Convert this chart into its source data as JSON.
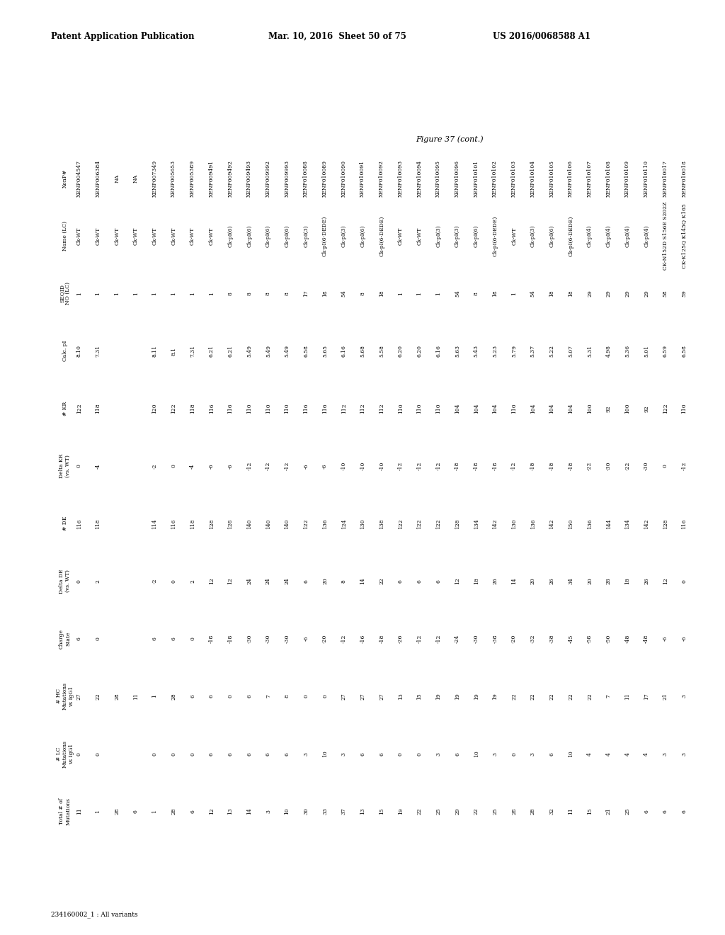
{
  "header_left": "Patent Application Publication",
  "header_middle": "Mar. 10, 2016  Sheet 50 of 75",
  "header_right": "US 2016/0068588 A1",
  "figure_label": "Figure 37 (cont.)",
  "footer_note": "234160002_1 : All variants",
  "col_headers": [
    "XenP#",
    "Name (LC)",
    "SEQID\nNO (LC)",
    "Calc. pI",
    "# KR",
    "Delta KR\n(vs. WT)",
    "# DE",
    "Delta DE\n(vs. WT)",
    "Charge\nState",
    "# HC\nMutations\nvs IgG1",
    "# LC\nMutations\nvs IgG1",
    "Total # of\nMutations"
  ],
  "rows": [
    [
      "XENP004547",
      "Ck-WT",
      "1",
      "8.10",
      "122",
      "0",
      "116",
      "0",
      "6",
      "27",
      "0",
      "11"
    ],
    [
      "XENP006384",
      "Ck-WT",
      "1",
      "7.31",
      "118",
      "-4",
      "118",
      "2",
      "0",
      "22",
      "0",
      "1"
    ],
    [
      "NA",
      "Ck-WT",
      "1",
      "",
      "",
      "",
      "",
      "",
      "",
      "28",
      "",
      "28"
    ],
    [
      "NA",
      "Ck-WT",
      "1",
      "",
      "",
      "",
      "",
      "",
      "",
      "11",
      "",
      "6"
    ],
    [
      "XENP007349",
      "Ck-WT",
      "1",
      "8.11",
      "120",
      "-2",
      "114",
      "-2",
      "6",
      "1",
      "0",
      "1"
    ],
    [
      "XENP005653",
      "Ck-WT",
      "1",
      "8.1",
      "122",
      "0",
      "116",
      "0",
      "6",
      "28",
      "0",
      "28"
    ],
    [
      "XENP005389",
      "Ck-WT",
      "1",
      "7.31",
      "118",
      "-4",
      "118",
      "2",
      "0",
      "6",
      "0",
      "6"
    ],
    [
      "XENP009491",
      "Ck-WT",
      "1",
      "6.21",
      "116",
      "-6",
      "128",
      "12",
      "-18",
      "6",
      "6",
      "12"
    ],
    [
      "XENP009492",
      "Ck-pI(6)",
      "8",
      "6.21",
      "116",
      "-6",
      "128",
      "12",
      "-18",
      "0",
      "6",
      "13"
    ],
    [
      "XENP009493",
      "Ck-pI(6)",
      "8",
      "5.49",
      "110",
      "-12",
      "140",
      "24",
      "-30",
      "6",
      "6",
      "14"
    ],
    [
      "XENP009992",
      "Ck-pI(6)",
      "8",
      "5.49",
      "110",
      "-12",
      "140",
      "24",
      "-30",
      "7",
      "6",
      "3"
    ],
    [
      "XENP009993",
      "Ck-pI(6)",
      "8",
      "5.49",
      "110",
      "-12",
      "140",
      "24",
      "-30",
      "8",
      "6",
      "10"
    ],
    [
      "XENP010088",
      "Ck-pI(3)",
      "17",
      "6.58",
      "116",
      "-6",
      "122",
      "6",
      "-6",
      "0",
      "3",
      "30"
    ],
    [
      "XENP010089",
      "Ck-pI(6-DEDE)",
      "18",
      "5.65",
      "116",
      "-6",
      "136",
      "20",
      "-20",
      "0",
      "10",
      "33"
    ],
    [
      "XENP010090",
      "Ck-pI(3)",
      "54",
      "6.16",
      "112",
      "-10",
      "124",
      "8",
      "-12",
      "27",
      "3",
      "37"
    ],
    [
      "XENP010091",
      "Ck-pI(6)",
      "8",
      "5.68",
      "112",
      "-10",
      "130",
      "14",
      "-16",
      "27",
      "6",
      "13"
    ],
    [
      "XENP010092",
      "Ck-pI(6-DEDE)",
      "18",
      "5.58",
      "112",
      "-10",
      "138",
      "22",
      "-18",
      "27",
      "6",
      "15"
    ],
    [
      "XENP010093",
      "Ck-WT",
      "1",
      "6.20",
      "110",
      "-12",
      "122",
      "6",
      "-26",
      "13",
      "0",
      "19"
    ],
    [
      "XENP010094",
      "Ck-WT",
      "1",
      "6.20",
      "110",
      "-12",
      "122",
      "6",
      "-12",
      "15",
      "0",
      "22"
    ],
    [
      "XENP010095",
      "Ck-pI(3)",
      "1",
      "6.16",
      "110",
      "-12",
      "122",
      "6",
      "-12",
      "19",
      "3",
      "25"
    ],
    [
      "XENP010096",
      "Ck-pI(3)",
      "54",
      "5.63",
      "104",
      "-18",
      "128",
      "12",
      "-24",
      "19",
      "6",
      "29"
    ],
    [
      "XENP010101",
      "Ck-pI(6)",
      "8",
      "5.43",
      "104",
      "-18",
      "134",
      "18",
      "-30",
      "19",
      "10",
      "22"
    ],
    [
      "XENP010102",
      "Ck-pI(6-DEDE)",
      "18",
      "5.23",
      "104",
      "-18",
      "142",
      "26",
      "-38",
      "19",
      "3",
      "25"
    ],
    [
      "XENP010103",
      "Ck-WT",
      "1",
      "5.79",
      "110",
      "-12",
      "130",
      "14",
      "-20",
      "22",
      "0",
      "28"
    ],
    [
      "XENP010104",
      "Ck-pI(3)",
      "54",
      "5.37",
      "104",
      "-18",
      "136",
      "20",
      "-32",
      "22",
      "3",
      "28"
    ],
    [
      "XENP010105",
      "Ck-pI(6)",
      "18",
      "5.22",
      "104",
      "-18",
      "142",
      "26",
      "-38",
      "22",
      "6",
      "32"
    ],
    [
      "XENP010106",
      "Ck-pI(6-DEDE)",
      "18",
      "5.07",
      "104",
      "-18",
      "150",
      "34",
      "-45",
      "22",
      "10",
      "11"
    ],
    [
      "XENP010107",
      "Ck-pI(4)",
      "29",
      "5.31",
      "100",
      "-22",
      "136",
      "20",
      "-58",
      "22",
      "4",
      "15"
    ],
    [
      "XENP010108",
      "Ck-pI(4)",
      "29",
      "4.98",
      "92",
      "-30",
      "144",
      "28",
      "-50",
      "7",
      "4",
      "21"
    ],
    [
      "XENP010109",
      "Ck-pI(4)",
      "29",
      "5.36",
      "100",
      "-22",
      "134",
      "18",
      "-48",
      "11",
      "4",
      "25"
    ],
    [
      "XENP010110",
      "Ck-pI(4)",
      "29",
      "5.01",
      "92",
      "-30",
      "142",
      "26",
      "-48",
      "17",
      "4",
      "6"
    ],
    [
      "XENP010017",
      "CK-N152D S156E S202Z",
      "58",
      "6.59",
      "122",
      "0",
      "128",
      "12",
      "-6",
      "21",
      "3",
      "6"
    ],
    [
      "XENP010018",
      "CK-K125Q K145Q K165",
      "59",
      "6.58",
      "110",
      "-12",
      "116",
      "0",
      "-6",
      "3",
      "3",
      "6"
    ]
  ]
}
